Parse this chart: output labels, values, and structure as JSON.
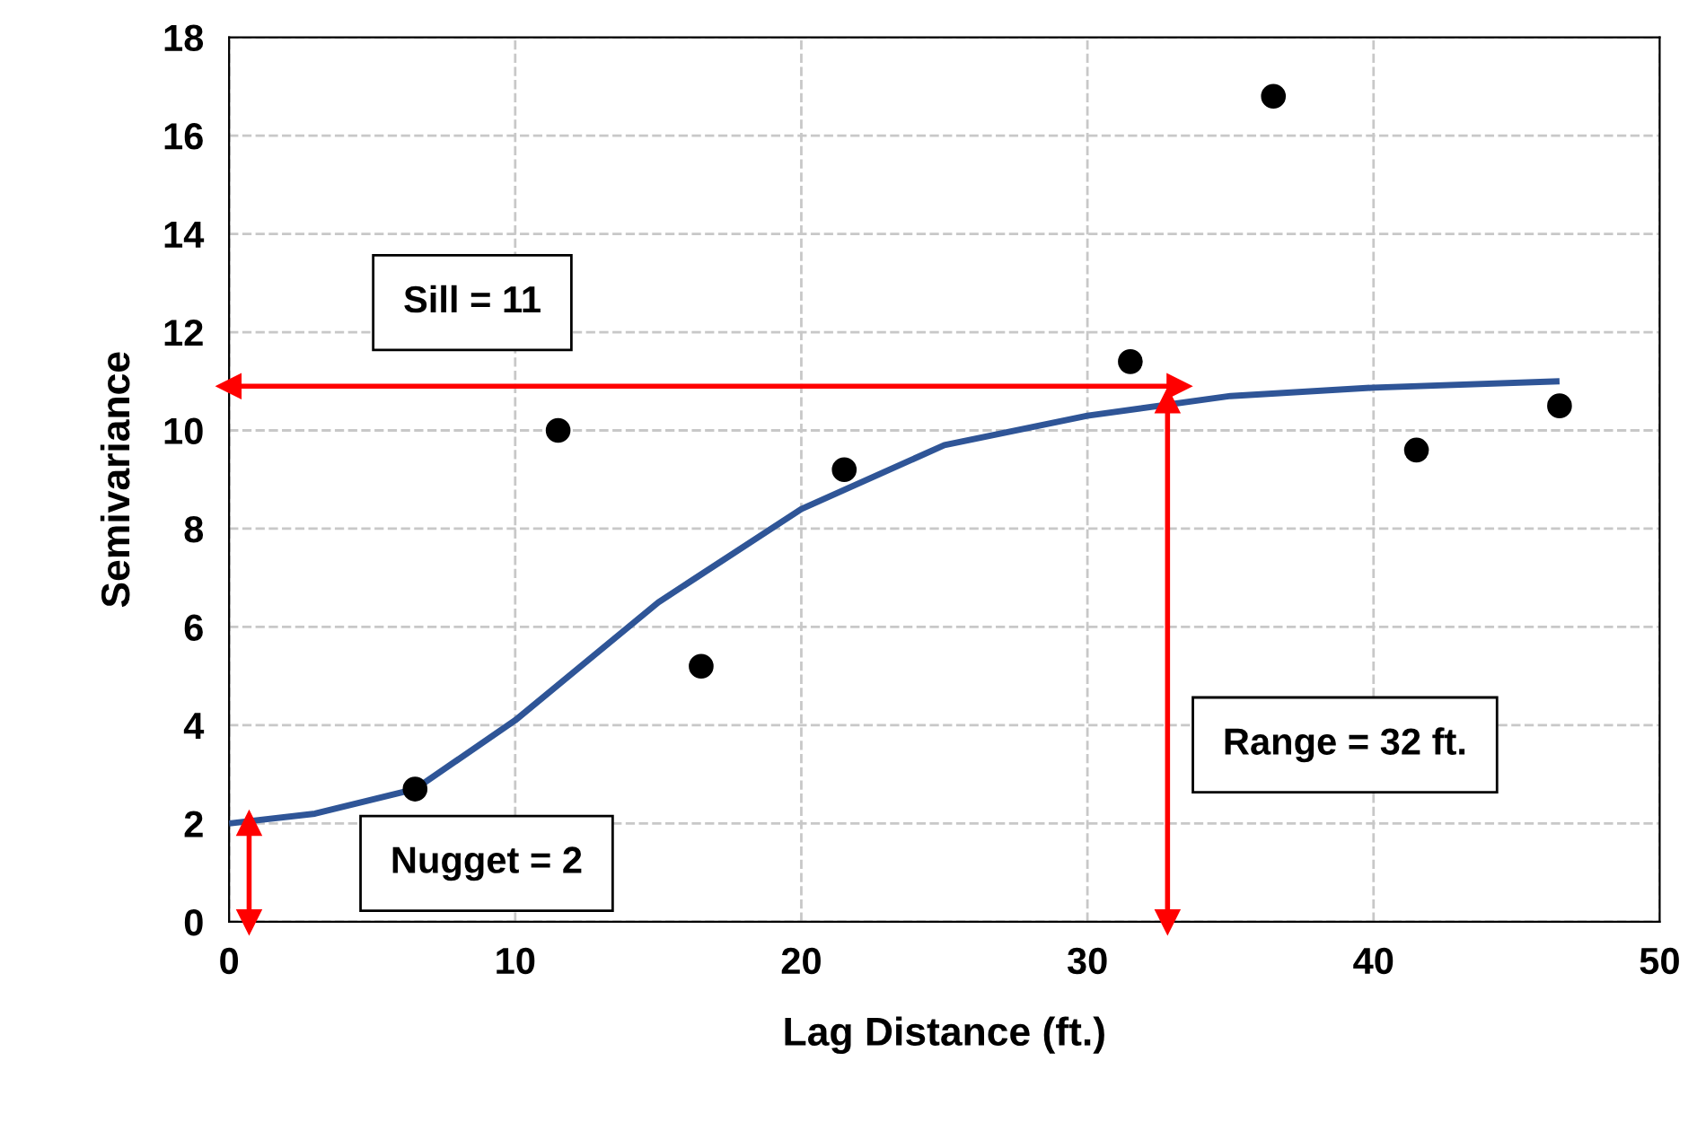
{
  "chart_data": {
    "type": "scatter",
    "xlabel": "Lag Distance (ft.)",
    "ylabel": "Semivariance",
    "xlim": [
      0,
      50
    ],
    "xticks": [
      0,
      10,
      20,
      30,
      40,
      50
    ],
    "ylim": [
      0,
      18
    ],
    "yticks": [
      0,
      2,
      4,
      6,
      8,
      10,
      12,
      14,
      16,
      18
    ],
    "grid": true,
    "series": [
      {
        "color": "#000000",
        "marker": "circle",
        "x": [
          6.5,
          11.5,
          16.5,
          21.5,
          31.5,
          36.5,
          41.5,
          46.5
        ],
        "values": [
          2.7,
          10.0,
          5.2,
          9.2,
          11.4,
          16.8,
          9.6,
          10.5
        ]
      },
      {
        "type": "line",
        "color": "#2f5597",
        "x": [
          0,
          3,
          6.5,
          10,
          15,
          20,
          25,
          30,
          35,
          40,
          46.5
        ],
        "values": [
          2.0,
          2.2,
          2.7,
          4.1,
          6.5,
          8.4,
          9.7,
          10.3,
          10.7,
          10.87,
          11.0
        ]
      },
      {
        "type": "line",
        "color": "#ff0000",
        "marker": "triangle",
        "x": [
          0,
          33.2
        ],
        "values": [
          10.9,
          10.9
        ]
      },
      {
        "type": "line",
        "color": "#ff0000",
        "marker": "triangle",
        "x": [
          32.8,
          32.8
        ],
        "values": [
          0,
          10.6
        ]
      },
      {
        "type": "line",
        "color": "#ff0000",
        "marker": "triangle",
        "x": [
          0.7,
          0.7
        ],
        "values": [
          0,
          2
        ]
      }
    ],
    "annotations": [
      "Sill = 11",
      "Range = 32 ft.",
      "Nugget = 2"
    ]
  }
}
